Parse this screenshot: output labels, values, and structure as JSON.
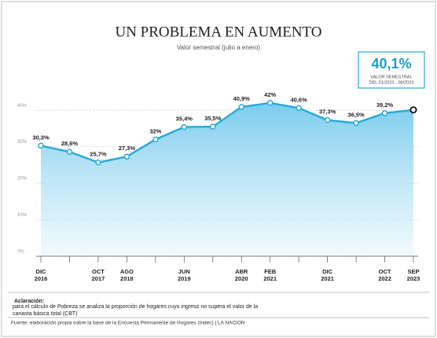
{
  "chart_data": {
    "type": "line",
    "title": "UN PROBLEMA EN AUMENTO",
    "subtitle": "Valor semestral (julio a enero)",
    "categories": [
      "DIC",
      null,
      "OCT",
      "AGO",
      null,
      "JUN",
      null,
      "ABR",
      "FEB",
      null,
      "DIC",
      null,
      "OCT",
      "SEP"
    ],
    "years": [
      "2016",
      null,
      "2017",
      "2018",
      null,
      "2019",
      null,
      "2020",
      "2021",
      null,
      "2021",
      null,
      "2022",
      "2023"
    ],
    "values": [
      30.3,
      28.6,
      25.7,
      27.3,
      32,
      35.4,
      35.5,
      40.9,
      42,
      40.6,
      37.3,
      36.5,
      39.2,
      40.1
    ],
    "value_labels": [
      "30,3%",
      "28,6%",
      "25,7%",
      "27,3%",
      "32%",
      "35,4%",
      "35,5%",
      "40,9%",
      "42%",
      "40,6%",
      "37,3%",
      "36,5%",
      "39,2%",
      "40,1%"
    ],
    "color": "#29a9d8",
    "ylim": [
      0,
      45
    ],
    "yticks": [
      {
        "value": 0,
        "label": "0%"
      },
      {
        "value": 10,
        "label": "10%"
      },
      {
        "value": 20,
        "label": "20%"
      },
      {
        "value": 30,
        "label": "30%"
      },
      {
        "value": 40,
        "label": "40%"
      }
    ],
    "grid": true,
    "callout_caption": [
      "VALOR SEMESTRAL",
      "DEL 01/2023 - 06/2023"
    ],
    "note_label": "Aclaración:",
    "note": "para el cálculo de Pobreza se analiza la proporción de hogares cuyo ingreso no supera el valor de la canasta básica total (CBT)",
    "source": "Fuente: elaboración propia sobre la base de la Encuesta Permanente de Hogares (Indec) | LA NACION"
  }
}
